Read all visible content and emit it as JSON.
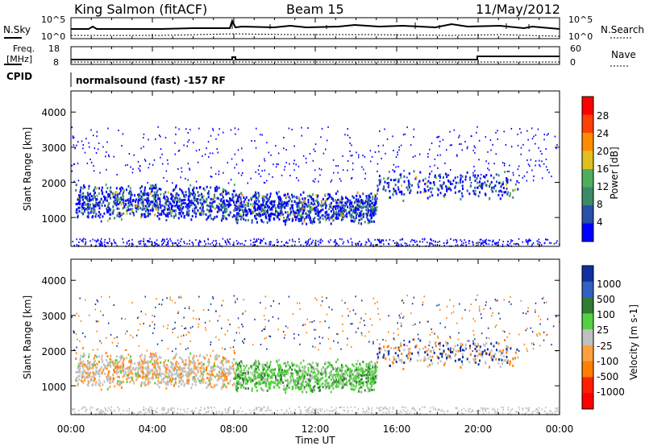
{
  "header": {
    "station": "King Salmon (fitACF)",
    "beam": "Beam 15",
    "date": "11/May/2012"
  },
  "noise_panel": {
    "left_label": "N.Sky",
    "right_label": "N.Search",
    "left_ticks": [
      "10^5",
      "10^0"
    ],
    "right_ticks": [
      "10^5",
      "10^0"
    ]
  },
  "freq_panel": {
    "left_label_1": "Freq.",
    "left_label_2": "[MHz]",
    "right_label": "Nave",
    "left_ticks": [
      "18",
      "8"
    ],
    "right_ticks": [
      "60",
      "0"
    ]
  },
  "cpid": {
    "label": "CPID",
    "text": "normalsound (fast) -157 RF"
  },
  "x_axis": {
    "label": "Time UT",
    "ticks": [
      "00:00",
      "04:00",
      "08:00",
      "12:00",
      "16:00",
      "20:00",
      "00:00"
    ]
  },
  "power_panel": {
    "ylabel": "Slant Range [km]",
    "yticks": [
      "1000",
      "2000",
      "3000",
      "4000"
    ],
    "colorbar_label": "Power [dB]",
    "colorbar_ticks": [
      "4",
      "8",
      "12",
      "16",
      "20",
      "24",
      "28"
    ]
  },
  "velocity_panel": {
    "ylabel": "Slant Range [km]",
    "yticks": [
      "1000",
      "2000",
      "3000",
      "4000"
    ],
    "colorbar_label": "Velocity [m s-1]",
    "colorbar_ticks": [
      "1000",
      "500",
      "100",
      "25",
      "-25",
      "-100",
      "-500",
      "-1000"
    ]
  },
  "chart_data": {
    "type": "heatmap",
    "title": "King Salmon (fitACF)",
    "xlabel": "Time UT",
    "ylabel": "Slant Range [km]",
    "x_range_hours": [
      0,
      24
    ],
    "y_range_km": [
      180,
      4600
    ],
    "panels": [
      {
        "name": "Power",
        "unit": "dB",
        "color_scale": [
          "#0000ff",
          "#2a4fa8",
          "#3b8a6a",
          "#4fae5e",
          "#e0c020",
          "#ff8c00",
          "#ff4000",
          "#ff0000"
        ],
        "scale_ticks": [
          4,
          8,
          12,
          16,
          20,
          24,
          28
        ],
        "echo_regions": [
          {
            "t_start": 0.2,
            "t_end": 8.0,
            "r_low": 900,
            "r_high": 2000,
            "level": "moderate"
          },
          {
            "t_start": 8.0,
            "t_end": 15.0,
            "r_low": 800,
            "r_high": 1800,
            "level": "moderate"
          },
          {
            "t_start": 15.0,
            "t_end": 22.0,
            "r_low": 1500,
            "r_high": 2400,
            "level": "weak"
          }
        ]
      },
      {
        "name": "Velocity",
        "unit": "m s-1",
        "color_scale": [
          "#1030a0",
          "#3060c0",
          "#2e7d32",
          "#55d040",
          "#c0c0c0",
          "#ffa040",
          "#ff7f00",
          "#ff2000",
          "#ff0000"
        ],
        "scale_ticks": [
          1000,
          500,
          100,
          25,
          -25,
          -100,
          -500,
          -1000
        ],
        "echo_regions": [
          {
            "t_start": 0.2,
            "t_end": 8.0,
            "r_low": 900,
            "r_high": 2000,
            "velocity": "near zero / negative"
          },
          {
            "t_start": 8.0,
            "t_end": 15.0,
            "r_low": 800,
            "r_high": 1800,
            "velocity": "positive ~100"
          },
          {
            "t_start": 15.0,
            "t_end": 22.0,
            "r_low": 1500,
            "r_high": 2400,
            "velocity": "mixed"
          }
        ]
      }
    ],
    "grid": false
  }
}
